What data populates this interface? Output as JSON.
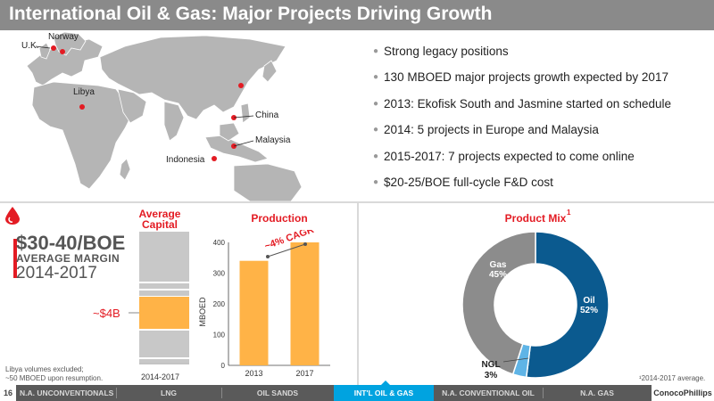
{
  "title": "International Oil & Gas: Major Projects Driving Growth",
  "map": {
    "labels": {
      "norway": "Norway",
      "uk": "U.K.",
      "libya": "Libya",
      "china": "China",
      "malaysia": "Malaysia",
      "indonesia": "Indonesia"
    }
  },
  "bullets": [
    "Strong legacy positions",
    "130 MBOED major projects growth expected by 2017",
    "2013: Ekofisk South and Jasmine started on schedule",
    "2014: 5 projects in Europe and Malaysia",
    "2015-2017: 7 projects expected to come online",
    "$20-25/BOE full-cycle F&D cost"
  ],
  "margin": {
    "value": "$30-40/BOE",
    "label": "AVERAGE MARGIN",
    "years": "2014-2017"
  },
  "average_capital": {
    "title_line1": "Average",
    "title_line2": "Capital",
    "value_label": "~$4B",
    "x_label": "2014-2017"
  },
  "footnote": {
    "line1": "Libya volumes excluded;",
    "line2": "~50 MBOED upon resumption."
  },
  "footnote_right": "¹2014-2017 average.",
  "product_mix_sup": "1",
  "colors": {
    "accent_red": "#e31b23",
    "bar_orange": "#ffb347",
    "oil_blue": "#0b5a8f",
    "ngl_blue": "#5fb4e6",
    "gas_gray": "#8c8c8c",
    "nav_active": "#00a3e0"
  },
  "nav": {
    "page": "16",
    "tabs": [
      "N.A. UNCONVENTIONALS",
      "LNG",
      "OIL SANDS",
      "INT'L OIL & GAS",
      "N.A. CONVENTIONAL OIL",
      "N.A. GAS"
    ],
    "active_index": 3,
    "logo": "ConocoPhillips"
  },
  "chart_data": [
    {
      "type": "bar",
      "title": "Production",
      "categories": [
        "2013",
        "2017"
      ],
      "values": [
        340,
        400
      ],
      "ylabel": "MBOED",
      "ylim": [
        0,
        400
      ],
      "yticks": [
        0,
        100,
        200,
        300,
        400
      ],
      "annotation": "~4% CAGR",
      "grid": false
    },
    {
      "type": "pie",
      "title": "Product Mix",
      "labels": [
        "Oil",
        "NGL",
        "Gas"
      ],
      "values": [
        52,
        3,
        45
      ],
      "value_labels": [
        "52%",
        "3%",
        "45%"
      ]
    }
  ]
}
